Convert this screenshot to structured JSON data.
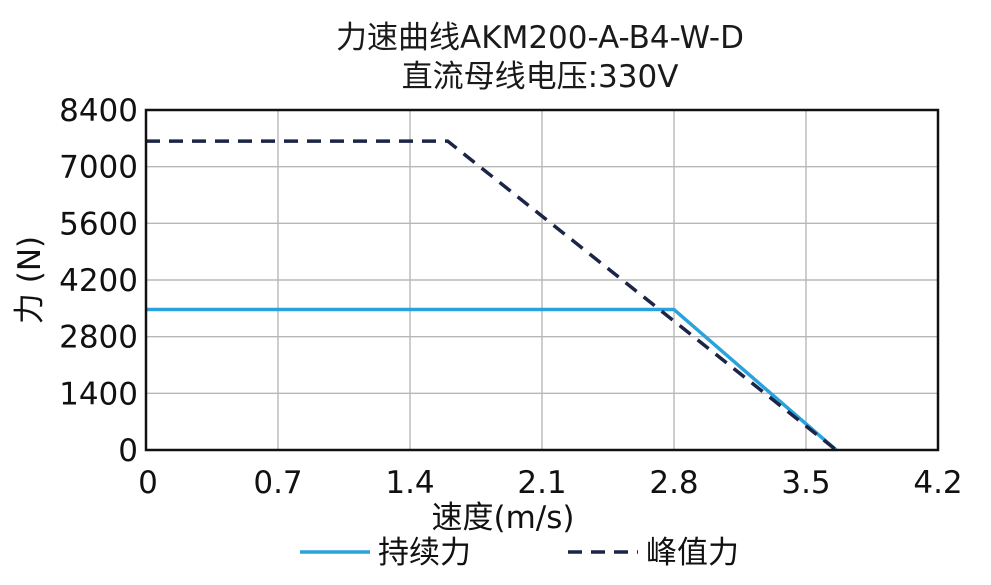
{
  "chart_data": {
    "type": "line",
    "title_line1": "力速曲线AKM200-A-B4-W-D",
    "title_line2": "直流母线电压:330V",
    "xlabel": "速度(m/s)",
    "ylabel": "力 (N)",
    "xlim": [
      0,
      4.2
    ],
    "ylim": [
      0,
      8400
    ],
    "xticks": [
      "0",
      "0.7",
      "1.4",
      "2.1",
      "2.8",
      "3.5",
      "4.2"
    ],
    "xtick_values": [
      0,
      0.7,
      1.4,
      2.1,
      2.8,
      3.5,
      4.2
    ],
    "yticks": [
      "0",
      "1400",
      "2800",
      "4200",
      "5600",
      "7000",
      "8400"
    ],
    "ytick_values": [
      0,
      1400,
      2800,
      4200,
      5600,
      7000,
      8400
    ],
    "grid": true,
    "legend_position": "bottom",
    "series": [
      {
        "name": "持续力",
        "style": "solid",
        "color": "#2aa2dc",
        "x": [
          0,
          2.8,
          3.66
        ],
        "y": [
          3470,
          3470,
          0
        ]
      },
      {
        "name": "峰值力",
        "style": "dashed",
        "color": "#1c2548",
        "x": [
          0,
          1.6,
          3.66
        ],
        "y": [
          7630,
          7630,
          0
        ]
      }
    ]
  }
}
